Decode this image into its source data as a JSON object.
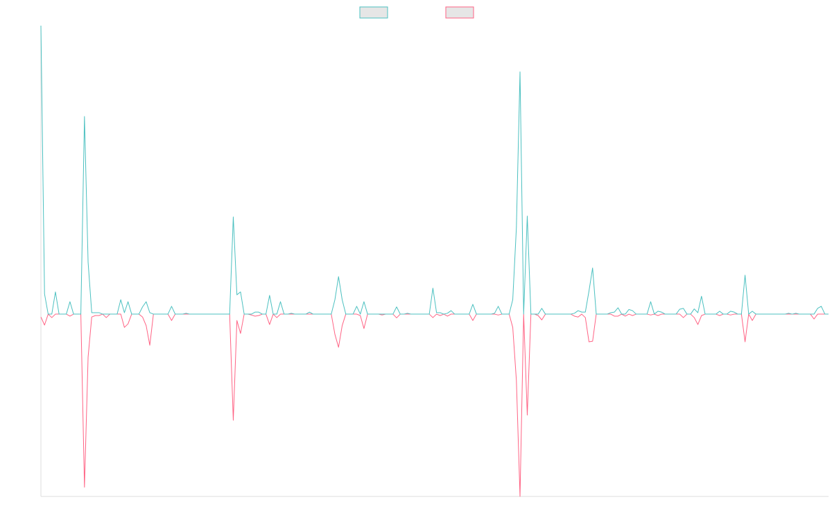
{
  "chart_data": {
    "type": "line",
    "legend": "top",
    "ylim": [
      -63.2,
      100
    ],
    "series": [
      {
        "color": "#4bc0c0",
        "values": [
          100,
          7,
          0,
          0,
          7.7,
          0,
          0,
          0,
          4.3,
          0,
          0,
          0,
          68.5,
          18,
          0.5,
          0.5,
          0.5,
          0,
          0,
          0,
          0,
          0,
          5,
          0.5,
          4.3,
          0,
          0,
          0,
          2.5,
          4.3,
          0.5,
          0,
          0,
          0,
          0,
          0,
          2.7,
          0,
          0,
          0,
          0.3,
          0,
          0,
          0,
          0,
          0,
          0,
          0,
          0,
          0,
          0,
          0,
          0,
          33.7,
          6.7,
          7.7,
          0,
          0,
          0,
          0.7,
          0.7,
          0,
          0,
          6.5,
          0,
          0,
          4.3,
          0,
          0,
          0.3,
          0,
          0,
          0,
          0,
          0.7,
          0,
          0,
          0,
          0,
          0,
          0,
          5,
          13,
          5,
          0,
          0,
          0,
          2.7,
          0,
          4.3,
          0,
          0,
          0,
          0,
          0,
          0,
          0,
          0,
          2.5,
          0,
          0,
          0.3,
          0,
          0,
          0,
          0,
          0,
          0,
          9,
          0.5,
          0.5,
          0,
          0.3,
          1.2,
          0,
          0,
          0,
          0,
          0,
          3.4,
          0,
          0,
          0,
          0,
          0,
          0.3,
          2.7,
          0,
          0,
          0,
          5,
          30,
          84,
          0,
          34,
          0,
          0,
          0,
          2,
          0,
          0,
          0,
          0,
          0,
          0,
          0,
          0,
          0.3,
          1.2,
          0.7,
          0.7,
          8,
          16,
          0,
          0,
          0,
          0,
          0.5,
          0.7,
          2.2,
          0,
          0,
          1.6,
          1.2,
          0,
          0,
          0,
          0,
          4.3,
          0,
          1,
          0.7,
          0,
          0,
          0,
          0,
          1.7,
          2,
          0,
          0,
          1.8,
          0.5,
          6.2,
          0,
          0,
          0,
          0,
          1,
          0,
          0,
          1,
          0.7,
          0,
          0,
          13.5,
          0,
          1,
          0,
          0,
          0,
          0,
          0,
          0,
          0,
          0,
          0,
          0.3,
          0,
          0.3,
          0,
          0,
          0,
          0,
          0,
          2,
          2.7,
          0,
          0
        ]
      },
      {
        "color": "#ff6384",
        "values": [
          -1,
          -3.8,
          0,
          -1.2,
          0,
          0,
          0,
          0,
          -0.7,
          0,
          0,
          0,
          -60,
          -14.9,
          -1,
          -0.5,
          -0.5,
          0,
          -1.2,
          0,
          0,
          0,
          0,
          -4.6,
          -3.4,
          0,
          0,
          0,
          -1,
          -4,
          -10.8,
          0,
          0,
          0,
          0,
          0,
          -2.2,
          0,
          0,
          0,
          0,
          0,
          0,
          0,
          0,
          0,
          0,
          0,
          0,
          0,
          0,
          0,
          0,
          -36.8,
          -2.2,
          -6.7,
          0,
          0,
          -0.3,
          -0.7,
          -0.5,
          0,
          0,
          -3.6,
          0,
          -1.2,
          0,
          0,
          0,
          0,
          0,
          0,
          0,
          0,
          0,
          0,
          0,
          0,
          0,
          0,
          0,
          -7,
          -11.5,
          -4,
          0,
          0,
          0,
          0,
          -0.5,
          -5,
          0,
          0,
          0,
          0,
          -0.3,
          0,
          0,
          0,
          -1.3,
          0,
          0,
          0,
          0,
          0,
          0,
          0,
          0,
          0,
          -1.2,
          0,
          -0.5,
          0,
          -0.7,
          0,
          0,
          0,
          0,
          0,
          0,
          -2.2,
          0,
          0,
          0,
          0,
          0,
          0,
          -0.3,
          0,
          0,
          0,
          -4.6,
          -23,
          -63.2,
          0,
          -35,
          0,
          0,
          -0.5,
          -2,
          0,
          0,
          0,
          0,
          0,
          0,
          0,
          0,
          -0.7,
          -1,
          0,
          -1.2,
          -9.6,
          -9.4,
          0,
          0,
          0,
          0,
          0,
          -0.7,
          -0.7,
          0,
          -0.7,
          0,
          -0.5,
          0,
          0,
          0,
          0,
          -0.3,
          0,
          -0.5,
          0,
          0,
          0,
          0,
          0,
          0,
          -1.2,
          0,
          0,
          -1.2,
          -3.6,
          -0.5,
          0,
          0,
          0,
          0,
          -0.5,
          0,
          0,
          -0.3,
          0,
          0,
          0,
          -9.6,
          0,
          -2.2,
          0,
          0,
          0,
          0,
          0,
          0,
          0,
          0,
          0,
          0,
          0,
          0,
          0,
          0,
          0,
          0,
          -1.7,
          0,
          0,
          0,
          0
        ]
      }
    ]
  }
}
